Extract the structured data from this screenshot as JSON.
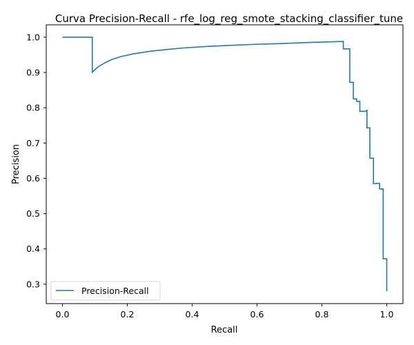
{
  "chart_data": {
    "type": "line",
    "title": "Curva Precision-Recall - rfe_log_reg_smote_stacking_classifier_tune",
    "xlabel": "Recall",
    "ylabel": "Precision",
    "xlim": [
      -0.05,
      1.05
    ],
    "ylim": [
      0.245,
      1.035
    ],
    "xticks": [
      0.0,
      0.2,
      0.4,
      0.6,
      0.8,
      1.0
    ],
    "xtick_labels": [
      "0.0",
      "0.2",
      "0.4",
      "0.6",
      "0.8",
      "1.0"
    ],
    "yticks": [
      0.3,
      0.4,
      0.5,
      0.6,
      0.7,
      0.8,
      0.9,
      1.0
    ],
    "ytick_labels": [
      "0.3",
      "0.4",
      "0.5",
      "0.6",
      "0.7",
      "0.8",
      "0.9",
      "1.0"
    ],
    "grid": false,
    "legend": {
      "position": "lower-left",
      "entries": [
        "Precision-Recall"
      ]
    },
    "series": [
      {
        "name": "Precision-Recall",
        "color": "#1f77b4",
        "points": [
          [
            0.0,
            1.0
          ],
          [
            0.092,
            1.0
          ],
          [
            0.092,
            0.901
          ],
          [
            0.11,
            0.916
          ],
          [
            0.13,
            0.927
          ],
          [
            0.15,
            0.936
          ],
          [
            0.18,
            0.945
          ],
          [
            0.22,
            0.953
          ],
          [
            0.27,
            0.96
          ],
          [
            0.32,
            0.965
          ],
          [
            0.38,
            0.97
          ],
          [
            0.45,
            0.974
          ],
          [
            0.52,
            0.977
          ],
          [
            0.6,
            0.98
          ],
          [
            0.68,
            0.982
          ],
          [
            0.76,
            0.985
          ],
          [
            0.83,
            0.987
          ],
          [
            0.866,
            0.988
          ],
          [
            0.866,
            0.967
          ],
          [
            0.886,
            0.967
          ],
          [
            0.886,
            0.872
          ],
          [
            0.897,
            0.872
          ],
          [
            0.897,
            0.825
          ],
          [
            0.907,
            0.825
          ],
          [
            0.907,
            0.818
          ],
          [
            0.917,
            0.818
          ],
          [
            0.917,
            0.79
          ],
          [
            0.938,
            0.79
          ],
          [
            0.938,
            0.793
          ],
          [
            0.939,
            0.793
          ],
          [
            0.939,
            0.743
          ],
          [
            0.948,
            0.743
          ],
          [
            0.948,
            0.657
          ],
          [
            0.959,
            0.657
          ],
          [
            0.959,
            0.585
          ],
          [
            0.968,
            0.585
          ],
          [
            0.968,
            0.586
          ],
          [
            0.978,
            0.586
          ],
          [
            0.978,
            0.57
          ],
          [
            0.989,
            0.57
          ],
          [
            0.989,
            0.372
          ],
          [
            1.0,
            0.372
          ],
          [
            1.0,
            0.28
          ]
        ]
      }
    ]
  }
}
